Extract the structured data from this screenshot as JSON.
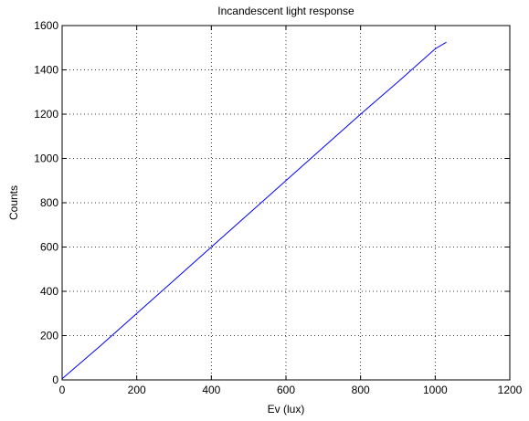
{
  "chart_data": {
    "type": "line",
    "title": "Incandescent light response",
    "xlabel": "Ev (lux)",
    "ylabel": "Counts",
    "xlim": [
      0,
      1200
    ],
    "ylim": [
      0,
      1600
    ],
    "xticks": [
      0,
      200,
      400,
      600,
      800,
      1000,
      1200
    ],
    "yticks": [
      0,
      200,
      400,
      600,
      800,
      1000,
      1200,
      1400,
      1600
    ],
    "grid": true,
    "series": [
      {
        "color": "#0000ff",
        "x": [
          0,
          100,
          200,
          300,
          400,
          500,
          600,
          700,
          800,
          900,
          1000,
          1030
        ],
        "y": [
          5,
          150,
          300,
          450,
          600,
          750,
          900,
          1050,
          1200,
          1345,
          1495,
          1525
        ]
      }
    ]
  }
}
